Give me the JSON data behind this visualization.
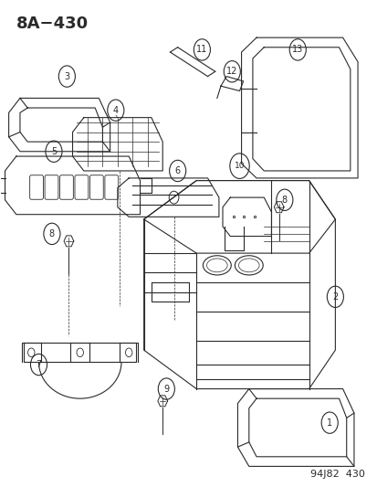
{
  "title": "8A−430",
  "footer": "94J82  430",
  "bg_color": "#ffffff",
  "line_color": "#2a2a2a",
  "title_fontsize": 13,
  "footer_fontsize": 8
}
